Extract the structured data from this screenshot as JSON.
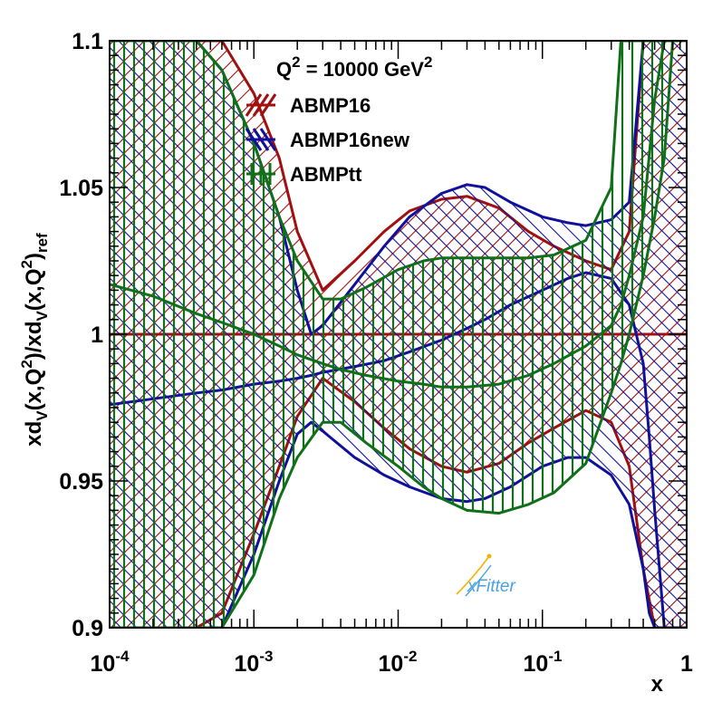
{
  "chart_data": {
    "type": "area",
    "title": "Q2 = 10000 GeV2",
    "title_parts": {
      "q": "Q",
      "q_exp": "2",
      "eq": " = 10000 GeV",
      "unit_exp": "2"
    },
    "xlabel": "x",
    "ylabel": {
      "p1": "xd",
      "s1": "V",
      "p2": "(x,Q",
      "e1": "2",
      "p3": ")/xd",
      "s2": "V",
      "p4": "(x,Q",
      "e2": "2",
      "p5": ")",
      "s3": "ref"
    },
    "xscale": "log",
    "xlim": [
      0.0001,
      1
    ],
    "ylim": [
      0.9,
      1.1
    ],
    "x_ticks": [
      {
        "value": 0.0001,
        "base": "10",
        "exp": "-4"
      },
      {
        "value": 0.001,
        "base": "10",
        "exp": "-3"
      },
      {
        "value": 0.01,
        "base": "10",
        "exp": "-2"
      },
      {
        "value": 0.1,
        "base": "10",
        "exp": "-1"
      },
      {
        "value": 1,
        "label": "1"
      }
    ],
    "y_ticks": [
      {
        "value": 0.9,
        "label": "0.9"
      },
      {
        "value": 0.95,
        "label": "0.95"
      },
      {
        "value": 1.0,
        "label": "1"
      },
      {
        "value": 1.05,
        "label": "1.05"
      },
      {
        "value": 1.1,
        "label": "1.1"
      }
    ],
    "legend_position": "top-center",
    "series": [
      {
        "name": "ABMP16",
        "color": "#a01010",
        "hatch": "diag-down",
        "x": [
          0.0001,
          0.0002,
          0.0004,
          0.0006,
          0.001,
          0.0015,
          0.002,
          0.003,
          0.005,
          0.008,
          0.012,
          0.02,
          0.03,
          0.05,
          0.08,
          0.12,
          0.2,
          0.3,
          0.4,
          0.5,
          0.6,
          0.7,
          0.8,
          0.9,
          1.0
        ],
        "central": [
          1,
          1,
          1,
          1,
          1,
          1,
          1,
          1,
          1,
          1,
          1,
          1,
          1,
          1,
          1,
          1,
          1,
          1,
          1,
          1,
          1,
          1,
          1,
          1,
          1
        ],
        "upper": [
          1.1,
          1.1,
          1.1,
          1.1,
          1.082,
          1.06,
          1.035,
          1.015,
          1.025,
          1.035,
          1.042,
          1.046,
          1.047,
          1.043,
          1.035,
          1.03,
          1.025,
          1.022,
          1.035,
          1.1,
          1.1,
          1.1,
          1.1,
          1.1,
          1.1
        ],
        "lower": [
          0.9,
          0.9,
          0.9,
          0.905,
          0.932,
          0.955,
          0.972,
          0.985,
          0.977,
          0.968,
          0.961,
          0.955,
          0.953,
          0.956,
          0.963,
          0.968,
          0.974,
          0.97,
          0.955,
          0.92,
          0.9,
          0.9,
          0.9,
          0.9,
          0.9
        ]
      },
      {
        "name": "ABMP16new",
        "color": "#10109a",
        "hatch": "diag-up",
        "x": [
          0.0001,
          0.0002,
          0.0004,
          0.0006,
          0.001,
          0.0015,
          0.002,
          0.0025,
          0.003,
          0.005,
          0.008,
          0.012,
          0.02,
          0.03,
          0.04,
          0.06,
          0.1,
          0.15,
          0.2,
          0.3,
          0.4,
          0.5,
          0.55,
          0.6,
          0.7,
          0.8,
          0.9,
          1.0
        ],
        "central": [
          0.976,
          0.978,
          0.98,
          0.981,
          0.983,
          0.984,
          0.985,
          0.986,
          0.987,
          0.989,
          0.991,
          0.994,
          0.998,
          1.002,
          1.005,
          1.01,
          1.015,
          1.019,
          1.021,
          1.019,
          1.01,
          0.99,
          0.965,
          0.94,
          0.9,
          0.9,
          0.9,
          0.9
        ],
        "upper": [
          1.1,
          1.1,
          1.1,
          1.09,
          1.065,
          1.04,
          1.015,
          1.0,
          1.003,
          1.017,
          1.03,
          1.04,
          1.048,
          1.051,
          1.05,
          1.045,
          1.04,
          1.038,
          1.037,
          1.039,
          1.045,
          1.1,
          1.1,
          1.1,
          1.1,
          1.1,
          1.1,
          1.1
        ],
        "lower": [
          0.9,
          0.9,
          0.9,
          0.9,
          0.925,
          0.95,
          0.966,
          0.97,
          0.967,
          0.958,
          0.952,
          0.948,
          0.944,
          0.943,
          0.944,
          0.948,
          0.955,
          0.958,
          0.958,
          0.952,
          0.942,
          0.92,
          0.905,
          0.9,
          0.9,
          0.9,
          0.9,
          0.9
        ]
      },
      {
        "name": "ABMPtt",
        "color": "#10701a",
        "hatch": "vertical",
        "x": [
          0.0001,
          0.0002,
          0.0004,
          0.0006,
          0.001,
          0.0015,
          0.002,
          0.003,
          0.004,
          0.006,
          0.01,
          0.015,
          0.02,
          0.03,
          0.05,
          0.08,
          0.12,
          0.2,
          0.3,
          0.35,
          0.4,
          0.5,
          0.6,
          0.7,
          0.8,
          0.9,
          1.0
        ],
        "central": [
          1.017,
          1.013,
          1.007,
          1.004,
          1.0,
          0.996,
          0.993,
          0.99,
          0.988,
          0.986,
          0.984,
          0.983,
          0.982,
          0.982,
          0.983,
          0.986,
          0.99,
          0.996,
          1.003,
          1.01,
          1.02,
          1.04,
          1.08,
          1.1,
          1.1,
          1.1,
          1.1
        ],
        "upper": [
          1.1,
          1.1,
          1.1,
          1.09,
          1.065,
          1.04,
          1.025,
          1.012,
          1.012,
          1.016,
          1.022,
          1.025,
          1.026,
          1.026,
          1.026,
          1.026,
          1.027,
          1.032,
          1.05,
          1.1,
          1.1,
          1.1,
          1.1,
          1.1,
          1.1,
          1.1,
          1.1
        ],
        "lower": [
          0.9,
          0.9,
          0.9,
          0.9,
          0.918,
          0.944,
          0.958,
          0.97,
          0.97,
          0.963,
          0.955,
          0.948,
          0.944,
          0.94,
          0.939,
          0.942,
          0.946,
          0.956,
          0.98,
          0.99,
          1.0,
          1.02,
          1.04,
          1.06,
          1.1,
          1.1,
          1.1
        ]
      }
    ]
  },
  "logo": {
    "text": "xFitter"
  }
}
